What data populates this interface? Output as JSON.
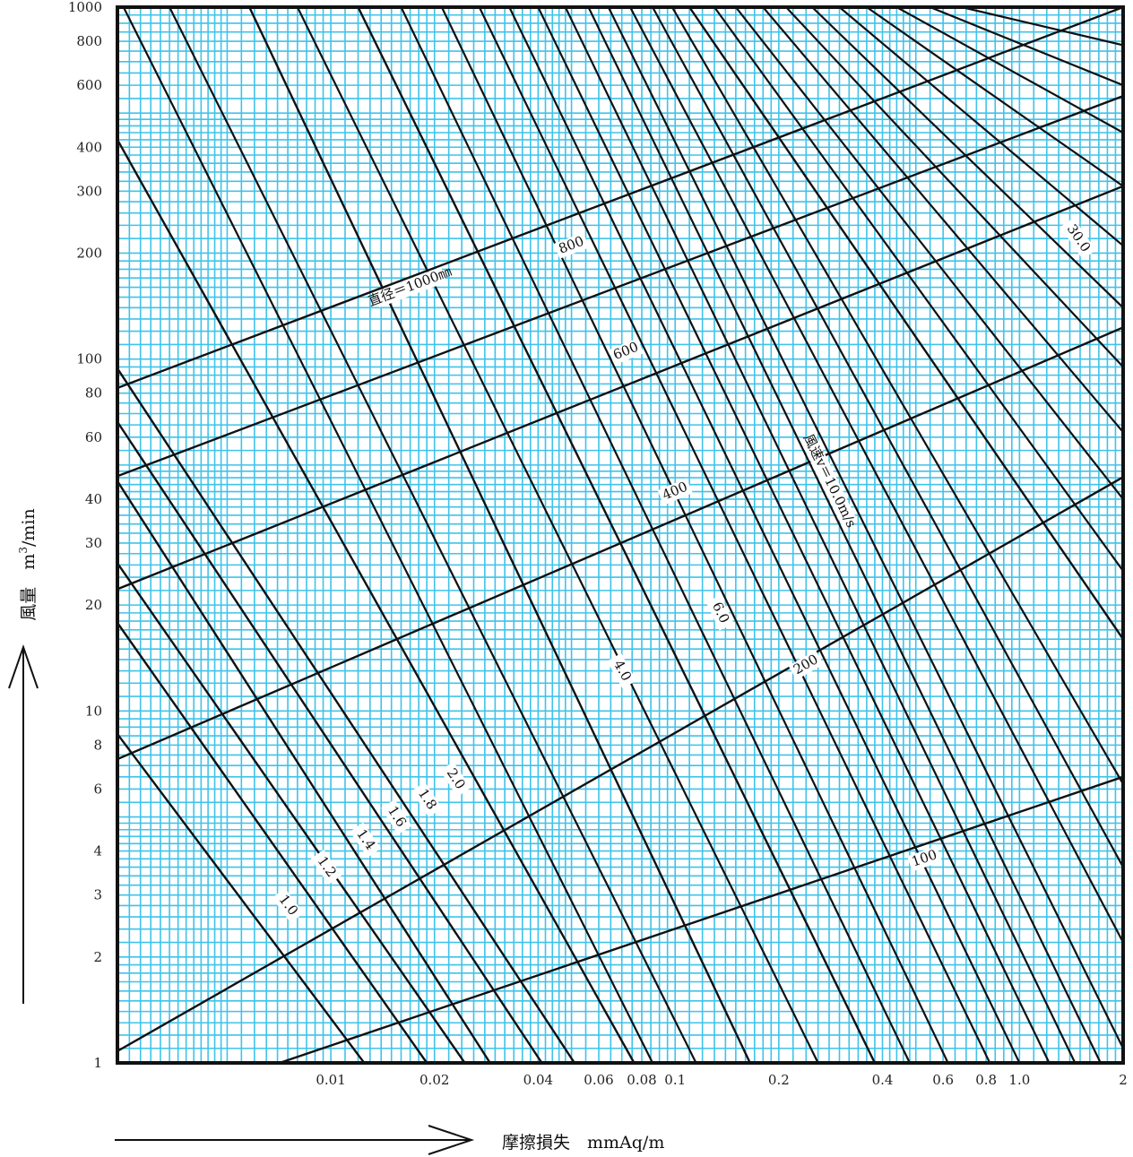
{
  "chart_data": {
    "type": "line",
    "x_scale": "log",
    "y_scale": "log",
    "xlim": [
      0.0024,
      2
    ],
    "ylim": [
      1,
      1000
    ],
    "grid": true,
    "colors": {
      "grid": "#3fc3ea",
      "lines": "#111111",
      "frame": "#111111"
    },
    "xlabel": "摩擦損失　mmAq/m",
    "ylabel_main": "風量　m",
    "ylabel_sup": "3",
    "ylabel_tail": "/min",
    "x_ticks": [
      {
        "v": 0.01,
        "t": "0.01"
      },
      {
        "v": 0.02,
        "t": "0.02"
      },
      {
        "v": 0.04,
        "t": "0.04"
      },
      {
        "v": 0.06,
        "t": "0.06"
      },
      {
        "v": 0.08,
        "t": "0.08"
      },
      {
        "v": 0.1,
        "t": "0.1"
      },
      {
        "v": 0.2,
        "t": "0.2"
      },
      {
        "v": 0.4,
        "t": "0.4"
      },
      {
        "v": 0.6,
        "t": "0.6"
      },
      {
        "v": 0.8,
        "t": "0.8"
      },
      {
        "v": 1.0,
        "t": "1.0"
      },
      {
        "v": 2,
        "t": "2"
      }
    ],
    "y_ticks": [
      {
        "v": 1,
        "t": "1"
      },
      {
        "v": 2,
        "t": "2"
      },
      {
        "v": 3,
        "t": "3"
      },
      {
        "v": 4,
        "t": "4"
      },
      {
        "v": 6,
        "t": "6"
      },
      {
        "v": 8,
        "t": "8"
      },
      {
        "v": 10,
        "t": "10"
      },
      {
        "v": 20,
        "t": "20"
      },
      {
        "v": 30,
        "t": "30"
      },
      {
        "v": 40,
        "t": "40"
      },
      {
        "v": 60,
        "t": "60"
      },
      {
        "v": 80,
        "t": "80"
      },
      {
        "v": 100,
        "t": "100"
      },
      {
        "v": 200,
        "t": "200"
      },
      {
        "v": 300,
        "t": "300"
      },
      {
        "v": 400,
        "t": "400"
      },
      {
        "v": 600,
        "t": "600"
      },
      {
        "v": 800,
        "t": "800"
      },
      {
        "v": 1000,
        "t": "1000"
      }
    ],
    "diameter_series": [
      {
        "diameter_mm": 1000,
        "label": "直径＝1000㎜",
        "points": [
          [
            0.0024,
            82.8
          ],
          [
            2,
            1000
          ]
        ],
        "label_at": [
          0.017,
          160
        ]
      },
      {
        "diameter_mm": 800,
        "label": "800",
        "points": [
          [
            0.0024,
            46.5
          ],
          [
            2,
            559
          ]
        ],
        "label_at": [
          0.05,
          210
        ]
      },
      {
        "diameter_mm": 600,
        "label": "600",
        "points": [
          [
            0.0024,
            22.2
          ],
          [
            2,
            310
          ]
        ],
        "label_at": [
          0.072,
          105
        ]
      },
      {
        "diameter_mm": 400,
        "label": "400",
        "points": [
          [
            0.0024,
            7.3
          ],
          [
            2,
            123
          ]
        ],
        "label_at": [
          0.1,
          42
        ]
      },
      {
        "diameter_mm": 200,
        "label": "200",
        "points": [
          [
            0.0024,
            1.08
          ],
          [
            2,
            46.2
          ]
        ],
        "label_at": [
          0.24,
          13.5
        ]
      },
      {
        "diameter_mm": 100,
        "label": "100",
        "points": [
          [
            0.0071,
            1
          ],
          [
            2,
            6.5
          ]
        ],
        "label_at": [
          0.53,
          3.8
        ]
      }
    ],
    "velocity_series": [
      {
        "velocity_ms": 1.0,
        "label": "1.0",
        "points": [
          [
            0.0024,
            8.6
          ],
          [
            0.0125,
            1
          ]
        ],
        "label_at": [
          0.0075,
          2.8
        ]
      },
      {
        "velocity_ms": 1.2,
        "label": "1.2",
        "points": [
          [
            0.0024,
            17.8
          ],
          [
            0.019,
            1
          ]
        ],
        "label_at": [
          0.0097,
          3.6
        ]
      },
      {
        "velocity_ms": 1.4,
        "label": "1.4",
        "points": [
          [
            0.0024,
            26.3
          ],
          [
            0.0245,
            1
          ]
        ],
        "label_at": [
          0.0126,
          4.3
        ]
      },
      {
        "velocity_ms": 1.6,
        "label": "1.6",
        "points": [
          [
            0.0024,
            45
          ],
          [
            0.029,
            1
          ]
        ],
        "label_at": [
          0.0155,
          5.0
        ]
      },
      {
        "velocity_ms": 1.8,
        "label": "1.8",
        "points": [
          [
            0.0024,
            66.3
          ],
          [
            0.041,
            1
          ]
        ],
        "label_at": [
          0.019,
          5.6
        ]
      },
      {
        "velocity_ms": 2.0,
        "label": "2.0",
        "points": [
          [
            0.0024,
            94
          ],
          [
            0.051,
            1
          ]
        ],
        "label_at": [
          0.023,
          6.4
        ]
      },
      {
        "velocity_ms": 4.0,
        "label": "4.0",
        "points": [
          [
            0.0024,
            420
          ],
          [
            0.076,
            1
          ]
        ],
        "label_at": [
          0.07,
          13
        ]
      },
      {
        "velocity_ms": 6.0,
        "label": "6.0",
        "points": [
          [
            0.0058,
            1000
          ],
          [
            0.165,
            1
          ]
        ],
        "label_at": [
          0.135,
          19
        ]
      },
      {
        "velocity_ms": 10.0,
        "label": "風速v＝10.0m/s",
        "points": [
          [
            0.012,
            1000
          ],
          [
            0.38,
            1
          ]
        ],
        "label_at": [
          0.28,
          45
        ]
      },
      {
        "velocity_ms": 30.0,
        "label": "30.0",
        "points": [
          [
            0.11,
            1000
          ],
          [
            2,
            16
          ]
        ],
        "label_at": [
          1.48,
          220
        ]
      }
    ],
    "extra_velocity_lines": [
      [
        [
          0.0025,
          1000
        ],
        [
          0.086,
          1
        ]
      ],
      [
        [
          0.0034,
          1000
        ],
        [
          0.115,
          1
        ]
      ],
      [
        [
          0.008,
          1000
        ],
        [
          0.26,
          1
        ]
      ],
      [
        [
          0.016,
          1000
        ],
        [
          0.48,
          1
        ]
      ],
      [
        [
          0.021,
          1000
        ],
        [
          0.62,
          1
        ]
      ],
      [
        [
          0.027,
          1000
        ],
        [
          0.82,
          1
        ]
      ],
      [
        [
          0.033,
          1000
        ],
        [
          1.0,
          1
        ]
      ],
      [
        [
          0.04,
          1000
        ],
        [
          1.22,
          1
        ]
      ],
      [
        [
          0.048,
          1000
        ],
        [
          1.45,
          1
        ]
      ],
      [
        [
          0.056,
          1000
        ],
        [
          1.72,
          1
        ]
      ],
      [
        [
          0.064,
          1000
        ],
        [
          2,
          1.1
        ]
      ],
      [
        [
          0.074,
          1000
        ],
        [
          2,
          2.2
        ]
      ],
      [
        [
          0.086,
          1000
        ],
        [
          2,
          3.6
        ]
      ],
      [
        [
          0.098,
          1000
        ],
        [
          2,
          6.2
        ]
      ],
      [
        [
          0.13,
          1000
        ],
        [
          2,
          25
        ]
      ],
      [
        [
          0.15,
          1000
        ],
        [
          2,
          40
        ]
      ],
      [
        [
          0.18,
          1000
        ],
        [
          2,
          62
        ]
      ],
      [
        [
          0.21,
          1000
        ],
        [
          2,
          95
        ]
      ],
      [
        [
          0.25,
          1000
        ],
        [
          2,
          140
        ]
      ],
      [
        [
          0.3,
          1000
        ],
        [
          2,
          210
        ]
      ],
      [
        [
          0.36,
          1000
        ],
        [
          2,
          310
        ]
      ],
      [
        [
          0.44,
          1000
        ],
        [
          2,
          440
        ]
      ],
      [
        [
          0.55,
          1000
        ],
        [
          2,
          600
        ]
      ],
      [
        [
          0.68,
          1000
        ],
        [
          2,
          780
        ]
      ]
    ]
  }
}
